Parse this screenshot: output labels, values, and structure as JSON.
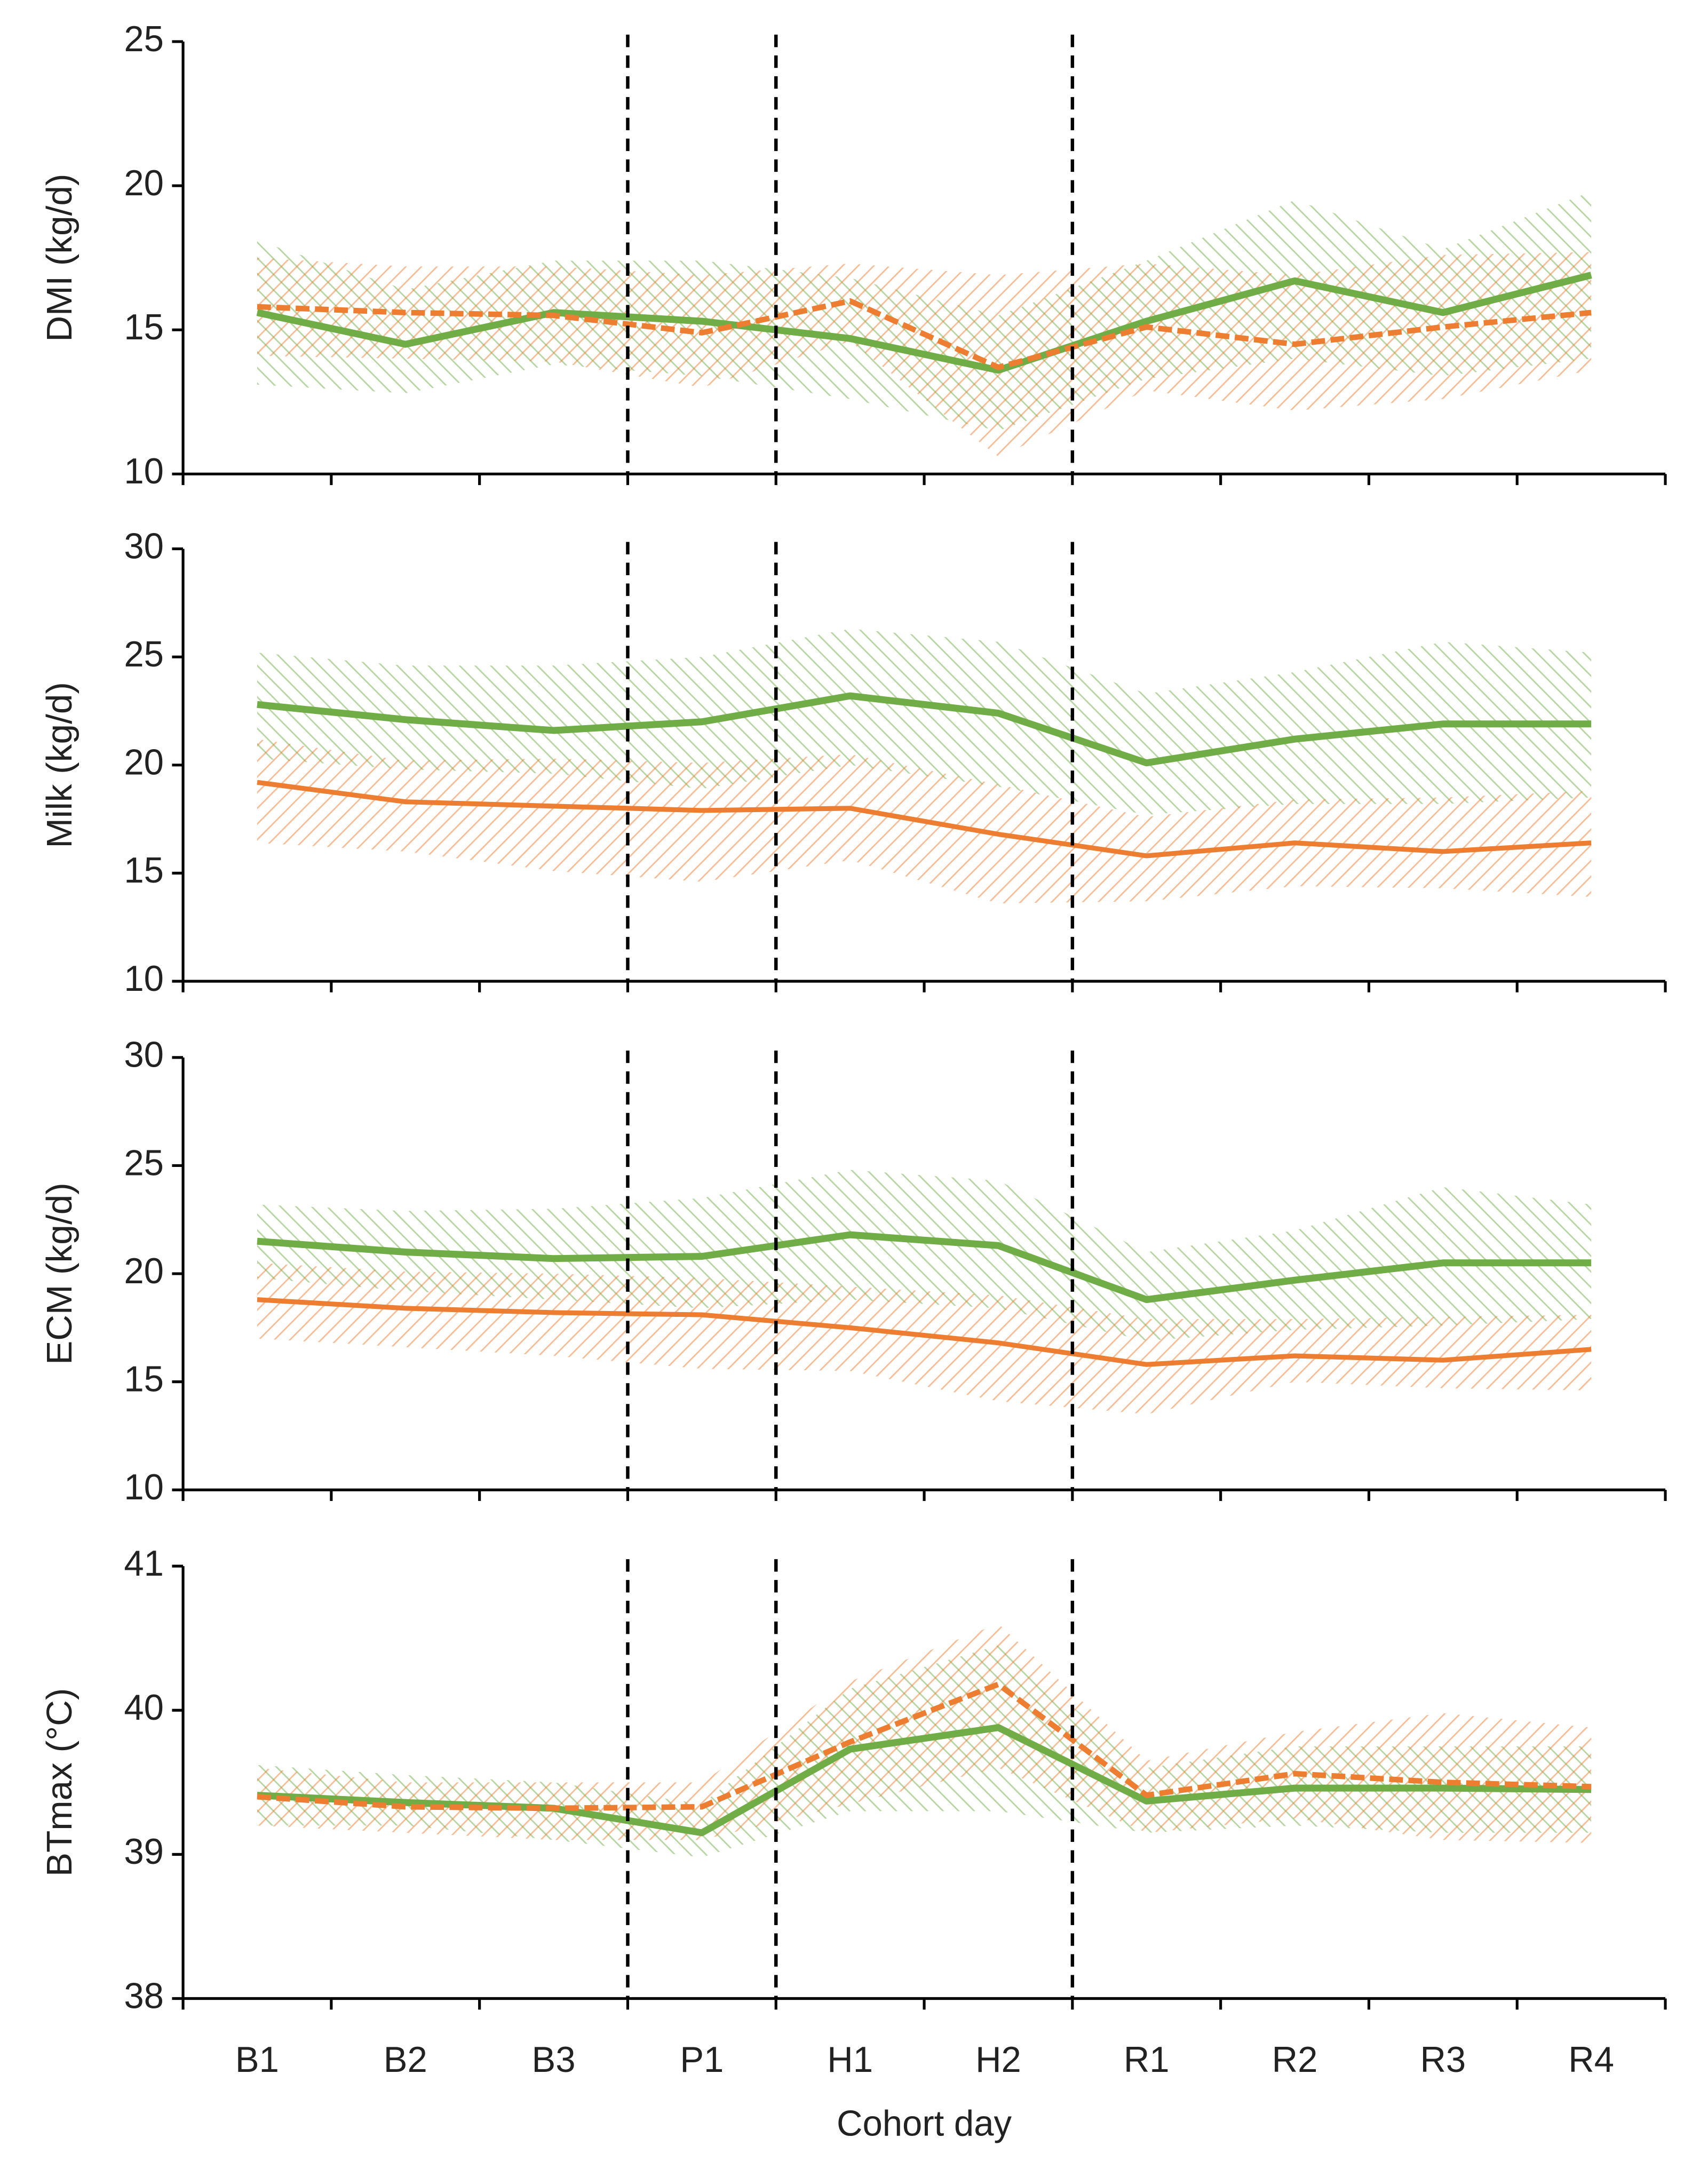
{
  "chart_data": [
    {
      "type": "line",
      "ylabel": "DMI (kg/d)",
      "ylim": [
        10,
        25
      ],
      "yticks": [
        10,
        15,
        20,
        25
      ],
      "series": [
        {
          "color": "#70ad47",
          "dashed": false,
          "values": [
            15.6,
            14.5,
            15.6,
            15.3,
            14.7,
            13.6,
            15.3,
            16.7,
            15.6,
            16.9
          ],
          "lower": [
            13.1,
            12.8,
            13.8,
            13.4,
            12.6,
            11.5,
            13.3,
            14.0,
            13.4,
            14.0
          ],
          "upper": [
            18.1,
            16.4,
            17.4,
            17.4,
            16.8,
            15.5,
            17.4,
            19.5,
            17.8,
            19.8
          ]
        },
        {
          "color": "#ed7d31",
          "dashed": true,
          "values": [
            15.8,
            15.6,
            15.5,
            14.9,
            16.0,
            13.7,
            15.1,
            14.5,
            15.1,
            15.6
          ],
          "lower": [
            14.1,
            14.0,
            13.9,
            13.0,
            14.6,
            10.6,
            12.9,
            12.2,
            12.6,
            13.6
          ],
          "upper": [
            17.5,
            17.2,
            17.2,
            16.9,
            17.3,
            16.9,
            17.3,
            16.9,
            17.6,
            17.7
          ]
        }
      ]
    },
    {
      "type": "line",
      "ylabel": "Milk (kg/d)",
      "ylim": [
        10,
        30
      ],
      "yticks": [
        10,
        15,
        20,
        25,
        30
      ],
      "series": [
        {
          "color": "#70ad47",
          "dashed": false,
          "values": [
            22.8,
            22.1,
            21.6,
            22.0,
            23.2,
            22.4,
            20.1,
            21.2,
            21.9,
            21.9
          ],
          "lower": [
            20.3,
            19.8,
            19.6,
            18.9,
            20.0,
            19.0,
            17.7,
            18.2,
            18.2,
            18.5
          ],
          "upper": [
            25.2,
            24.6,
            24.6,
            25.0,
            26.3,
            25.7,
            23.3,
            24.3,
            25.7,
            25.2
          ]
        },
        {
          "color": "#ed7d31",
          "dashed": false,
          "values": [
            19.2,
            18.3,
            18.1,
            17.9,
            18.0,
            16.8,
            15.8,
            16.4,
            16.0,
            16.4
          ],
          "lower": [
            16.4,
            16.0,
            15.1,
            14.6,
            15.6,
            13.6,
            13.7,
            14.4,
            14.3,
            13.9
          ],
          "upper": [
            21.2,
            20.2,
            20.3,
            20.1,
            20.5,
            19.1,
            17.6,
            18.4,
            18.5,
            18.8
          ]
        }
      ]
    },
    {
      "type": "line",
      "ylabel": "ECM (kg/d)",
      "ylim": [
        10,
        30
      ],
      "yticks": [
        10,
        15,
        20,
        25,
        30
      ],
      "series": [
        {
          "color": "#70ad47",
          "dashed": false,
          "values": [
            21.5,
            21.0,
            20.7,
            20.8,
            21.8,
            21.3,
            18.8,
            19.7,
            20.5,
            20.5
          ],
          "lower": [
            19.8,
            19.2,
            18.8,
            18.4,
            18.8,
            18.4,
            16.9,
            17.4,
            17.6,
            17.9
          ],
          "upper": [
            23.2,
            22.9,
            23.0,
            23.5,
            24.8,
            24.3,
            21.0,
            22.0,
            24.0,
            23.2
          ]
        },
        {
          "color": "#ed7d31",
          "dashed": false,
          "values": [
            18.8,
            18.4,
            18.2,
            18.1,
            17.5,
            16.8,
            15.8,
            16.2,
            16.0,
            16.5
          ],
          "lower": [
            17.0,
            16.6,
            16.2,
            15.6,
            15.5,
            14.1,
            13.5,
            15.0,
            14.7,
            14.6
          ],
          "upper": [
            20.5,
            20.1,
            20.0,
            19.8,
            19.4,
            19.0,
            17.9,
            17.9,
            18.0,
            18.1
          ]
        }
      ]
    },
    {
      "type": "line",
      "ylabel": "BTmax (°C)",
      "ylim": [
        38,
        41
      ],
      "yticks": [
        38,
        39,
        40,
        41
      ],
      "xlabel": "Cohort day",
      "categories": [
        "B1",
        "B2",
        "B3",
        "P1",
        "H1",
        "H2",
        "R1",
        "R2",
        "R3",
        "R4"
      ],
      "series": [
        {
          "color": "#70ad47",
          "dashed": false,
          "values": [
            39.41,
            39.36,
            39.32,
            39.15,
            39.73,
            39.88,
            39.37,
            39.46,
            39.46,
            39.45
          ],
          "lower": [
            39.2,
            39.2,
            39.1,
            38.98,
            39.3,
            39.3,
            39.15,
            39.2,
            39.15,
            39.15
          ],
          "upper": [
            39.62,
            39.55,
            39.5,
            39.35,
            40.15,
            40.45,
            39.6,
            39.75,
            39.75,
            39.75
          ]
        },
        {
          "color": "#ed7d31",
          "dashed": true,
          "values": [
            39.4,
            39.33,
            39.32,
            39.33,
            39.78,
            40.18,
            39.41,
            39.56,
            39.5,
            39.47
          ],
          "lower": [
            39.2,
            39.15,
            39.1,
            39.1,
            39.35,
            39.6,
            39.15,
            39.25,
            39.1,
            39.08
          ],
          "upper": [
            39.6,
            39.5,
            39.5,
            39.5,
            40.2,
            40.6,
            39.65,
            39.85,
            39.98,
            39.88
          ]
        }
      ]
    }
  ]
}
